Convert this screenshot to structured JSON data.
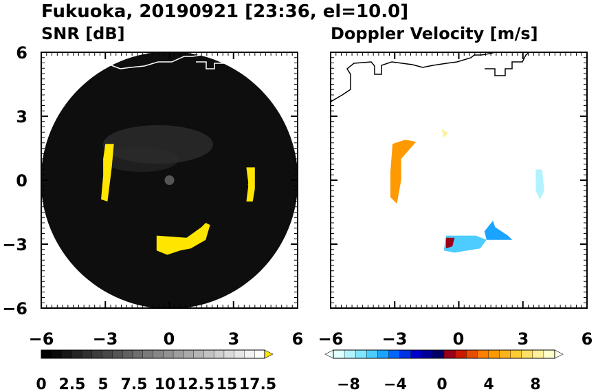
{
  "title": "Fukuoka, 20190921 [23:36, el=10.0]",
  "chart_data": [
    {
      "type": "heatmap",
      "title": "SNR [dB]",
      "xlim": [
        -6,
        6
      ],
      "ylim": [
        -6,
        6
      ],
      "x_ticks": [
        "−6",
        "−3",
        "0",
        "3",
        "6"
      ],
      "y_ticks": [
        "6",
        "3",
        "0",
        "−3",
        "−6"
      ],
      "radar_range": 6,
      "colorbar": {
        "min": 0,
        "max": 18.5,
        "extend": "max",
        "tick_labels": [
          "0",
          "2.5",
          "5",
          "7.5",
          "10",
          "12.5",
          "15",
          "17.5"
        ],
        "colors": [
          "#000000",
          "#0b0b0b",
          "#171717",
          "#242424",
          "#303030",
          "#3c3c3c",
          "#484848",
          "#555555",
          "#616161",
          "#6d6d6d",
          "#7a7a7a",
          "#868686",
          "#929292",
          "#9e9e9e",
          "#aaaaaa",
          "#b6b6b6",
          "#c2c2c2",
          "#cecece",
          "#dadada",
          "#e6e6e6",
          "#f2f2f2",
          "#ffffff"
        ],
        "extend_color": "#ffe600"
      },
      "echoes": [
        {
          "x": -2.9,
          "y": 0.3,
          "level": 20
        },
        {
          "x": 3.8,
          "y": -0.2,
          "level": 20
        },
        {
          "x": 0.3,
          "y": -3.0,
          "level": 20
        }
      ]
    },
    {
      "type": "heatmap",
      "title": "Doppler Velocity [m/s]",
      "xlim": [
        -6,
        6
      ],
      "ylim": [
        -6,
        6
      ],
      "x_ticks": [
        "−6",
        "−3",
        "0",
        "3",
        "6"
      ],
      "y_ticks": [
        "6",
        "3",
        "0",
        "−3",
        "−6"
      ],
      "colorbar": {
        "min": -10,
        "max": 10,
        "extend": "both",
        "tick_labels": [
          "−8",
          "−4",
          "0",
          "4",
          "8"
        ],
        "colors": [
          "#e0ffff",
          "#b3f2ff",
          "#80e5ff",
          "#4dccff",
          "#1aa3ff",
          "#0066ff",
          "#0033e6",
          "#0000cc",
          "#000099",
          "#000066",
          "#99001a",
          "#cc1a00",
          "#e64d00",
          "#ff8000",
          "#ff9900",
          "#ffb31a",
          "#ffcc33",
          "#ffe066",
          "#fff099",
          "#ffffcc"
        ],
        "extend_colors": [
          "#f0ffff",
          "#fffff0"
        ]
      },
      "echoes": [
        {
          "x": -3.0,
          "y": 0.5,
          "velocity": 4.5
        },
        {
          "x": 3.7,
          "y": -0.2,
          "velocity": -8.5
        },
        {
          "x": 0.7,
          "y": -2.9,
          "velocity": -7.0
        },
        {
          "x": 1.6,
          "y": -2.4,
          "velocity": -6.0
        },
        {
          "x": -0.4,
          "y": -3.1,
          "velocity": 0.5
        }
      ]
    }
  ]
}
